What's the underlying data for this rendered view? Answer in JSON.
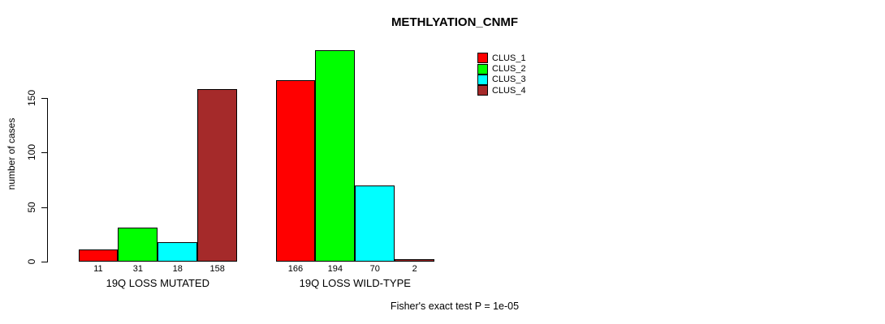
{
  "chart_data": {
    "type": "bar",
    "title": "METHLYATION_CNMF",
    "ylabel": "number of cases",
    "xlabel": "",
    "caption": "Fisher's exact test P = 1e-05",
    "yticks": [
      0,
      50,
      100,
      150
    ],
    "ylim": [
      0,
      205
    ],
    "grid": false,
    "legend_position": "top-right",
    "categories": [
      "19Q LOSS MUTATED",
      "19Q LOSS WILD-TYPE"
    ],
    "series": [
      {
        "name": "CLUS_1",
        "color": "#FF0000",
        "values": [
          11,
          166
        ]
      },
      {
        "name": "CLUS_2",
        "color": "#00FF00",
        "values": [
          31,
          194
        ]
      },
      {
        "name": "CLUS_3",
        "color": "#00FFFF",
        "values": [
          18,
          70
        ]
      },
      {
        "name": "CLUS_4",
        "color": "#A52A2A",
        "values": [
          158,
          2
        ]
      }
    ]
  }
}
